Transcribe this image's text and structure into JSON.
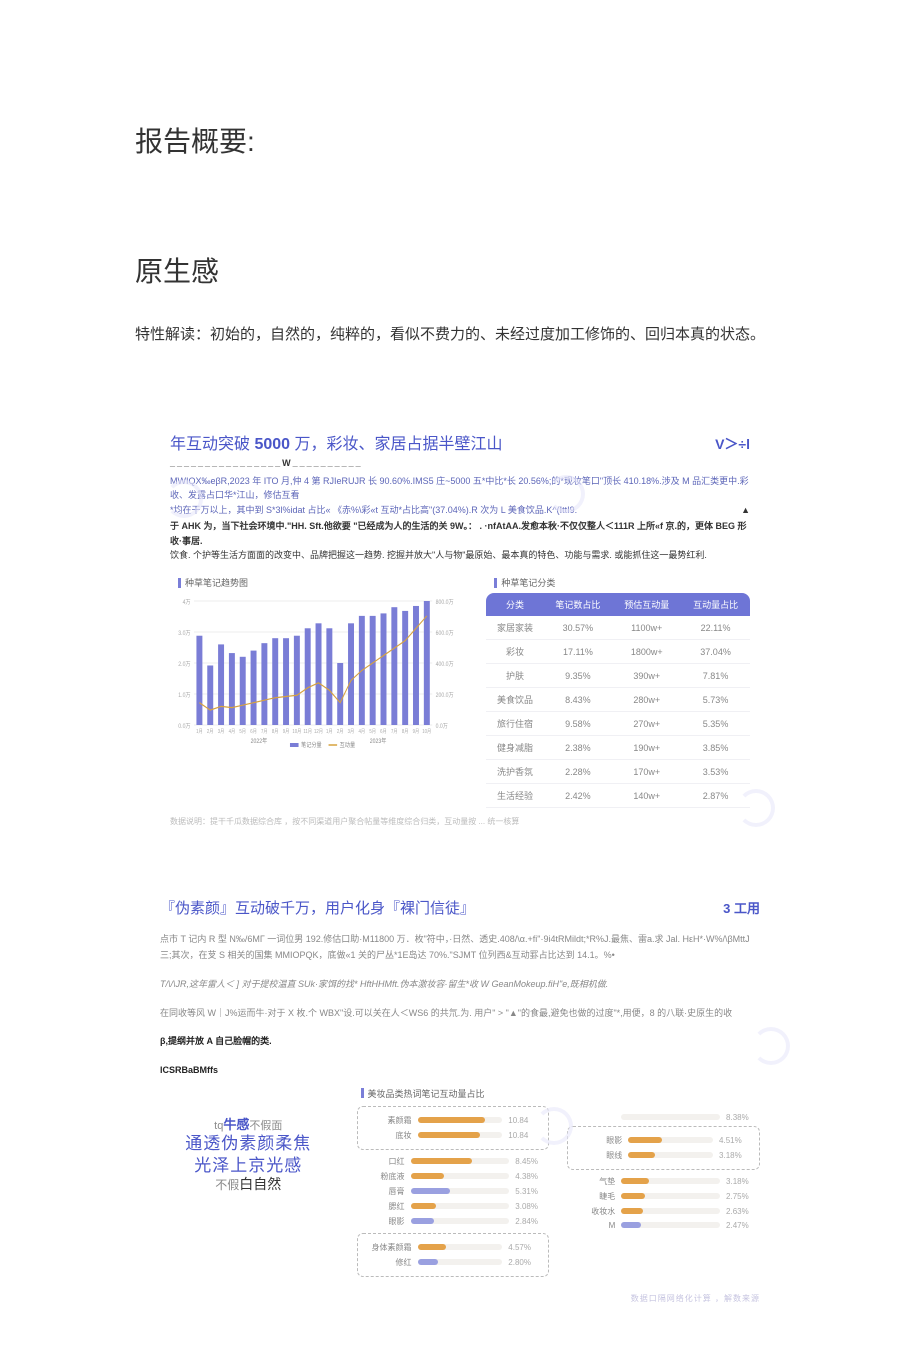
{
  "section_title": "报告概要:",
  "sub_title": "原生感",
  "description": "特性解读：初始的，自然的，纯粹的，看似不费力的、未经过度加工修饰的、回归本真的状态。",
  "card1": {
    "title_prefix": "年互动突破 ",
    "title_bold": "5000",
    "title_suffix": " 万，彩妆、家居占据半壁江山",
    "corner": "V＞÷l",
    "sub_w": "________________W__________",
    "para_blue": "MWIQX‰eβR,2023 年 ITO 月,仲 4 第 RJIeRUJR 长 90.60%.IMS5 庄~5000 五*中比*长 20.56%;的*现妆笔口\"顶长 410.18%.涉及 M 品汇类更中.彩收、发露占口华*江山，修估互看",
    "para_blue2": "*均在干万以上，其中到 S*3l%idat 占比« 《赤%\\彩«t 互动*占比高\"(37.04%).R 次为 L 美食饮品.K^(IttI9.",
    "para_black": "于 AHK 为，当下社会环境中.\"HH. Sft.他欲要  \"已经成为人的生活的关 9W。：  . ·nfAtAA.发愈本秋·不仅仅整人＜111R 上所«f 京.的，更体 BEG 形收·事居.",
    "para_black2": "饮食. 个护等生活方面面的改变中、品牌把握这一趋势. 挖握并放大\"人与物\"最原始、最本真的特色、功能与需求.  或能抓住这一最势红利.",
    "chart": {
      "caption": "种草笔记趋势图",
      "type": "bar+line",
      "x_labels": [
        "1月",
        "2月",
        "3月",
        "4月",
        "5月",
        "6月",
        "7月",
        "8月",
        "9月",
        "10月",
        "11月",
        "12月",
        "1月",
        "2月",
        "3月",
        "4月",
        "5月",
        "6月",
        "7月",
        "8月",
        "9月",
        "10月"
      ],
      "x_group_labels": [
        "2022年",
        "2023年"
      ],
      "left_y_label_max": "4万",
      "left_y_ticks": [
        "0.0万",
        "1.0万",
        "2.0万",
        "3.0万",
        "4万"
      ],
      "right_y_ticks": [
        "0.0万",
        "200.0万",
        "400.0万",
        "600.0万",
        "800.0万"
      ],
      "bar_color": "#7a7dd6",
      "line_color": "#d7a23e",
      "bars": [
        0.72,
        0.48,
        0.65,
        0.58,
        0.55,
        0.6,
        0.66,
        0.7,
        0.7,
        0.72,
        0.78,
        0.82,
        0.78,
        0.5,
        0.82,
        0.88,
        0.88,
        0.9,
        0.95,
        0.92,
        0.96,
        1.0
      ],
      "line": [
        0.18,
        0.12,
        0.15,
        0.14,
        0.16,
        0.18,
        0.2,
        0.22,
        0.23,
        0.24,
        0.3,
        0.34,
        0.28,
        0.18,
        0.36,
        0.44,
        0.5,
        0.56,
        0.62,
        0.68,
        0.78,
        0.88
      ],
      "legend": [
        "笔记分量",
        "互动量"
      ]
    },
    "table": {
      "caption": "种草笔记分类",
      "headers": [
        "分类",
        "笔记数占比",
        "预估互动量",
        "互动量占比"
      ],
      "rows": [
        [
          "家居家装",
          "30.57%",
          "1100w+",
          "22.11%"
        ],
        [
          "彩妆",
          "17.11%",
          "1800w+",
          "37.04%"
        ],
        [
          "护肤",
          "9.35%",
          "390w+",
          "7.81%"
        ],
        [
          "美食饮品",
          "8.43%",
          "280w+",
          "5.73%"
        ],
        [
          "旅行住宿",
          "9.58%",
          "270w+",
          "5.35%"
        ],
        [
          "健身减脂",
          "2.38%",
          "190w+",
          "3.85%"
        ],
        [
          "洗护香氛",
          "2.28%",
          "170w+",
          "3.53%"
        ],
        [
          "生活经验",
          "2.42%",
          "140w+",
          "2.87%"
        ]
      ]
    },
    "footnote": "数据说明：提干千瓜数据综合库 ，按不同渠道用户聚合帖量等维度综合归类，互动量按 ... 统一核算"
  },
  "card2": {
    "title": "『伪素颜』互动破千万，用户化身『裸门信徒』",
    "corner": "3 工用",
    "para1": "点市 T 记内 R 型 N‰/6MГ 一词位男 192.修估口助·M11800 万．枚\"符中，·日然、透史.408/\\α.+fi\"·9i4tRMildt;*R%J.最焦、雷a.求 Jal. HεH*·W%/\\βMttJ 三;其次，在芆 S 相关的国集 MMIOPQK，底做«1 关的尸丛*1E岛达 70%.\"SJMT 位列西&互动罫占比达到 14.1。%•",
    "para2_italic": "T/\\/\\JR,这年雷人＜ ] 对于提校温直 SUk·家饵的找* HftHHMft.伪本激妆容·留生*收 W GeanMokeup.fiH\"e,既相机做.",
    "para3": "在同收等风 W｜J%运而牛·对于 X 枚.个 WBX\"设.可以关在人＜WS6 的共氘.为. 用户\" > \"▲\"的食最,避免也做的过度\"*,用便，8 的八联·史原生的收",
    "black_line": "β,提纲并放 A 自己脸帽的类.",
    "bold_line": "lCSRBaBMffs",
    "word_cloud": {
      "l1_pre": "tq",
      "l1_big": "牛感",
      "l1_post": "不假面",
      "l2": "通透伪素颜柔焦",
      "l3": "光泽上京光感",
      "l4_pre": "不假",
      "l4_big": "白自然"
    },
    "hbars_caption": "美妆品类热词笔记互动量占比",
    "left_group_boxed": [
      "素颜霜",
      "底妆"
    ],
    "left_group": [
      {
        "label": "口红",
        "val": "8.45%",
        "pct": 62,
        "color": "#e4a24a"
      },
      {
        "label": "粉底液",
        "val": "4.38%",
        "pct": 34,
        "color": "#e4a24a"
      },
      {
        "label": "唇膏",
        "val": "5.31%",
        "pct": 40,
        "color": "#9aa0e0"
      },
      {
        "label": "腮红",
        "val": "3.08%",
        "pct": 26,
        "color": "#e4a24a"
      },
      {
        "label": "眼影",
        "val": "2.84%",
        "pct": 24,
        "color": "#9aa0e0"
      }
    ],
    "left_group_boxed2": [
      "身体素颜霜",
      "修红"
    ],
    "left_group_vals": [
      "10.84",
      "10.84"
    ],
    "left_group2_vals": [
      "4.57%",
      "2.80%"
    ],
    "right_pair_boxed": [
      "眼影",
      "眼线"
    ],
    "right_pair_vals": [
      "4.51%",
      "3.18%"
    ],
    "right_group": [
      {
        "label": "气垫",
        "val": "3.18%",
        "pct": 28,
        "color": "#e4a24a"
      },
      {
        "label": "睫毛",
        "val": "2.75%",
        "pct": 24,
        "color": "#e4a24a"
      },
      {
        "label": "收妆水",
        "val": "2.63%",
        "pct": 22,
        "color": "#e4a24a"
      }
    ],
    "right_tail": {
      "label": "M",
      "val": "2.47%"
    },
    "right_first_val": "8.38%",
    "footer": "数据口隔网络化计算 ，解数来源"
  }
}
